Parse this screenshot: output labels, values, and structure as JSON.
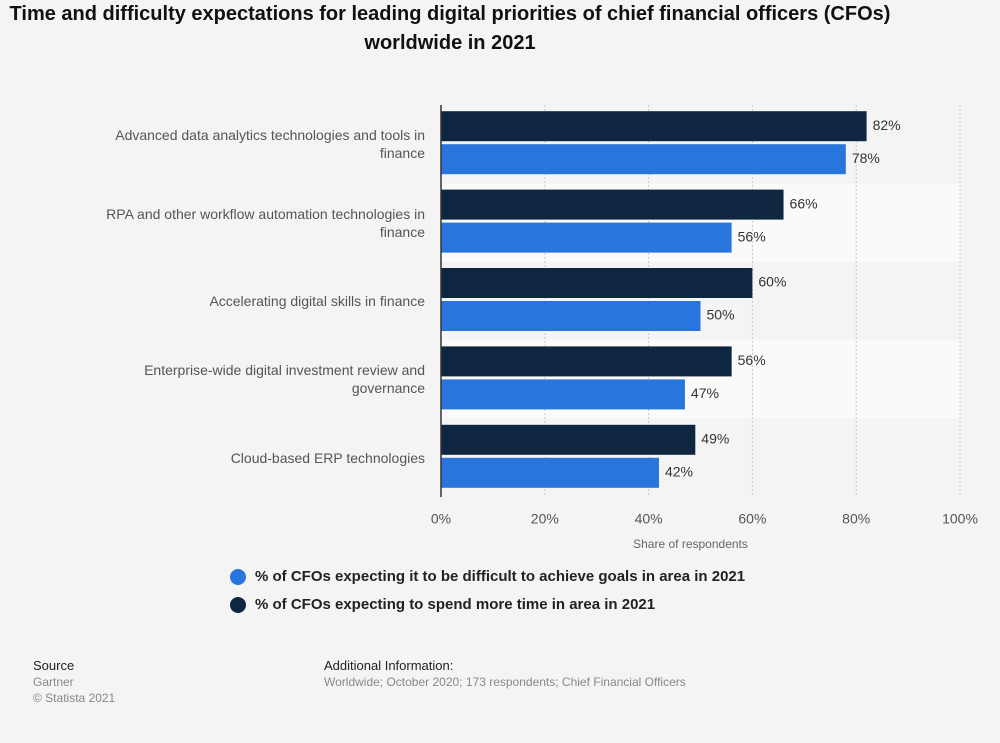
{
  "chart_data": {
    "type": "hbar",
    "title": "Time and difficulty expectations for leading digital priorities of chief financial officers (CFOs) worldwide in 2021",
    "categories": [
      "Advanced data analytics technologies and tools in finance",
      "RPA and other workflow automation technologies in finance",
      "Accelerating digital skills in finance",
      "Enterprise-wide digital investment review and governance",
      "Cloud-based ERP technologies"
    ],
    "series": [
      {
        "name": "% of CFOs expecting it to be difficult to achieve goals in area in 2021",
        "color": "#2876dd",
        "values": [
          78,
          56,
          50,
          47,
          42
        ],
        "value_labels": [
          "78%",
          "56%",
          "50%",
          "47%",
          "42%"
        ]
      },
      {
        "name": "% of CFOs expecting to spend more time in area in 2021",
        "color": "#0f2640",
        "values": [
          82,
          66,
          60,
          56,
          49
        ],
        "value_labels": [
          "82%",
          "66%",
          "60%",
          "56%",
          "49%"
        ]
      }
    ],
    "xlim": [
      0,
      100
    ],
    "xticks": [
      {
        "value": 0,
        "label": "0%"
      },
      {
        "value": 20,
        "label": "20%"
      },
      {
        "value": 40,
        "label": "40%"
      },
      {
        "value": 60,
        "label": "60%"
      },
      {
        "value": 80,
        "label": "80%"
      },
      {
        "value": 100,
        "label": "100%"
      }
    ],
    "xlabel": "Share of respondents",
    "grid": true
  },
  "footer": {
    "source_title": "Source",
    "source": "Gartner",
    "copyright": "© Statista 2021",
    "info_title": "Additional Information:",
    "info": "Worldwide; October 2020; 173 respondents; Chief Financial Officers"
  }
}
